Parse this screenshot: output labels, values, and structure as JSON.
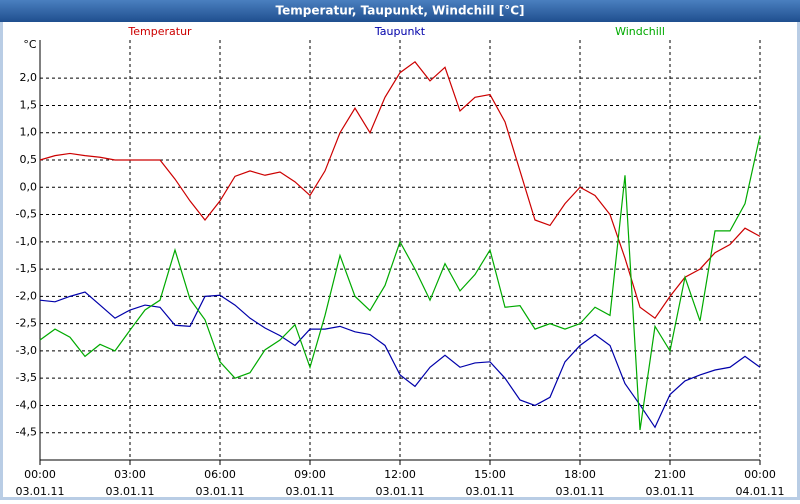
{
  "chart_data": {
    "type": "line",
    "title": "Temperatur, Taupunkt, Windchill [°C]",
    "y_unit": "°C",
    "x": [
      0,
      0.5,
      1,
      1.5,
      2,
      2.5,
      3,
      3.5,
      4,
      4.5,
      5,
      5.5,
      6,
      6.5,
      7,
      7.5,
      8,
      8.5,
      9,
      9.5,
      10,
      10.5,
      11,
      11.5,
      12,
      12.5,
      13,
      13.5,
      14,
      14.5,
      15,
      15.5,
      16,
      16.5,
      17,
      17.5,
      18,
      18.5,
      19,
      19.5,
      20,
      20.5,
      21,
      21.5,
      22,
      22.5,
      23,
      23.5,
      24
    ],
    "xlim": [
      0,
      24
    ],
    "xticks": [
      {
        "value": 0,
        "label": "00:00",
        "date": "03.01.11"
      },
      {
        "value": 3,
        "label": "03:00",
        "date": "03.01.11"
      },
      {
        "value": 6,
        "label": "06:00",
        "date": "03.01.11"
      },
      {
        "value": 9,
        "label": "09:00",
        "date": "03.01.11"
      },
      {
        "value": 12,
        "label": "12:00",
        "date": "03.01.11"
      },
      {
        "value": 15,
        "label": "15:00",
        "date": "03.01.11"
      },
      {
        "value": 18,
        "label": "18:00",
        "date": "03.01.11"
      },
      {
        "value": 21,
        "label": "21:00",
        "date": "03.01.11"
      },
      {
        "value": 24,
        "label": "00:00",
        "date": "04.01.11"
      }
    ],
    "ylim": [
      -5,
      2.7
    ],
    "yticks": [
      {
        "value": -4.5,
        "label": "-4,5"
      },
      {
        "value": -4,
        "label": "-4,0"
      },
      {
        "value": -3.5,
        "label": "-3,5"
      },
      {
        "value": -3,
        "label": "-3,0"
      },
      {
        "value": -2.5,
        "label": "-2,5"
      },
      {
        "value": -2,
        "label": "-2,0"
      },
      {
        "value": -1.5,
        "label": "-1,5"
      },
      {
        "value": -1,
        "label": "-1,0"
      },
      {
        "value": -0.5,
        "label": "-0,5"
      },
      {
        "value": 0,
        "label": "0,0"
      },
      {
        "value": 0.5,
        "label": "0,5"
      },
      {
        "value": 1,
        "label": "1,0"
      },
      {
        "value": 1.5,
        "label": "1,5"
      },
      {
        "value": 2,
        "label": "2,0"
      }
    ],
    "grid": true,
    "series": [
      {
        "name": "Temperatur",
        "color": "#cc0000",
        "values": [
          0.5,
          0.58,
          0.62,
          0.58,
          0.55,
          0.5,
          0.5,
          0.5,
          0.5,
          0.15,
          -0.25,
          -0.6,
          -0.25,
          0.2,
          0.3,
          0.22,
          0.28,
          0.1,
          -0.15,
          0.3,
          1.0,
          1.45,
          1.0,
          1.65,
          2.1,
          2.3,
          1.95,
          2.2,
          1.4,
          1.65,
          1.7,
          1.2,
          0.3,
          -0.6,
          -0.7,
          -0.3,
          0.0,
          -0.15,
          -0.5,
          -1.3,
          -2.2,
          -2.4,
          -2.0,
          -1.65,
          -1.5,
          -1.2,
          -1.05,
          -0.75,
          -0.9
        ]
      },
      {
        "name": "Taupunkt",
        "color": "#0000aa",
        "values": [
          -2.07,
          -2.1,
          -2.0,
          -1.92,
          -2.16,
          -2.4,
          -2.25,
          -2.16,
          -2.2,
          -2.53,
          -2.55,
          -2.0,
          -1.98,
          -2.16,
          -2.4,
          -2.58,
          -2.72,
          -2.9,
          -2.6,
          -2.6,
          -2.55,
          -2.65,
          -2.7,
          -2.9,
          -3.44,
          -3.65,
          -3.3,
          -3.08,
          -3.3,
          -3.22,
          -3.2,
          -3.5,
          -3.9,
          -4.0,
          -3.85,
          -3.2,
          -2.9,
          -2.7,
          -2.9,
          -3.6,
          -3.99,
          -4.4,
          -3.8,
          -3.55,
          -3.44,
          -3.35,
          -3.3,
          -3.1,
          -3.3
        ]
      },
      {
        "name": "Windchill",
        "color": "#00aa00",
        "values": [
          -2.8,
          -2.6,
          -2.75,
          -3.1,
          -2.88,
          -3.0,
          -2.62,
          -2.25,
          -2.07,
          -1.15,
          -2.05,
          -2.43,
          -3.2,
          -3.5,
          -3.4,
          -2.98,
          -2.8,
          -2.52,
          -3.3,
          -2.35,
          -1.25,
          -2.0,
          -2.26,
          -1.8,
          -1.0,
          -1.5,
          -2.07,
          -1.4,
          -1.9,
          -1.6,
          -1.15,
          -2.2,
          -2.17,
          -2.6,
          -2.5,
          -2.6,
          -2.5,
          -2.2,
          -2.35,
          0.22,
          -4.45,
          -2.55,
          -3.0,
          -1.65,
          -2.45,
          -0.8,
          -0.8,
          -0.3,
          0.95
        ]
      }
    ]
  }
}
